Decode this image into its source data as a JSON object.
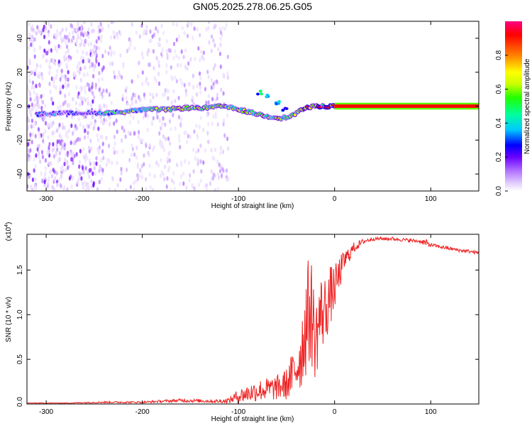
{
  "figure_title": "GN05.2025.278.06.25.G05",
  "chart_data": [
    {
      "type": "heatmap",
      "name": "spectrogram",
      "title": "GN05.2025.278.06.25.G05",
      "xlabel": "Height of straight line (km)",
      "ylabel": "Frequency (Hz)",
      "xlim": [
        -320,
        150
      ],
      "ylim": [
        -50,
        50
      ],
      "x_ticks": [
        -300,
        -200,
        -100,
        0,
        100
      ],
      "y_ticks": [
        -40,
        -20,
        0,
        20,
        40
      ],
      "colorbar": {
        "label": "Normalized spectral amplitude",
        "range": [
          0.0,
          1.0
        ],
        "ticks": [
          0.0,
          0.2,
          0.4,
          0.6,
          0.8
        ],
        "tick_labels": [
          "0.0",
          "0.2",
          "0.4",
          "0.6",
          "0.8"
        ],
        "colormap": [
          "#ffffff",
          "#e0c8ff",
          "#b070ff",
          "#6a00ff",
          "#0000ff",
          "#00c8ff",
          "#00ff80",
          "#40ff00",
          "#c8ff00",
          "#ffff00",
          "#ff8000",
          "#ff0000",
          "#ff0080"
        ]
      },
      "signal_track": [
        {
          "x": -310,
          "f": -5,
          "amp": 0.35
        },
        {
          "x": -290,
          "f": -4,
          "amp": 0.4
        },
        {
          "x": -270,
          "f": -4,
          "amp": 0.3
        },
        {
          "x": -250,
          "f": -4,
          "amp": 0.35
        },
        {
          "x": -235,
          "f": -4,
          "amp": 0.55
        },
        {
          "x": -215,
          "f": -3,
          "amp": 0.6
        },
        {
          "x": -195,
          "f": -2,
          "amp": 0.65
        },
        {
          "x": -175,
          "f": -2,
          "amp": 0.65
        },
        {
          "x": -155,
          "f": -1,
          "amp": 0.65
        },
        {
          "x": -135,
          "f": -1,
          "amp": 0.7
        },
        {
          "x": -115,
          "f": 0,
          "amp": 0.7
        },
        {
          "x": -100,
          "f": -2,
          "amp": 0.75
        },
        {
          "x": -85,
          "f": -4,
          "amp": 0.7
        },
        {
          "x": -70,
          "f": -6,
          "amp": 0.7
        },
        {
          "x": -55,
          "f": -7,
          "amp": 0.7
        },
        {
          "x": -45,
          "f": -6,
          "amp": 0.65
        },
        {
          "x": -35,
          "f": -2,
          "amp": 0.8
        },
        {
          "x": -20,
          "f": 0,
          "amp": 0.9
        },
        {
          "x": 0,
          "f": 0,
          "amp": 0.95
        },
        {
          "x": 150,
          "f": 0,
          "amp": 1.0
        }
      ],
      "side_branch": [
        {
          "x": -78,
          "f": 8,
          "amp": 0.45
        },
        {
          "x": -70,
          "f": 6,
          "amp": 0.45
        },
        {
          "x": -60,
          "f": 2,
          "amp": 0.4
        },
        {
          "x": -52,
          "f": -2,
          "amp": 0.4
        }
      ],
      "noise_region_x": [
        -320,
        -110
      ]
    },
    {
      "type": "line",
      "name": "snr",
      "xlabel": "Height of straight line (km)",
      "ylabel": "SNR (10 * v/v)",
      "y_multiplier": "(x10^4)",
      "xlim": [
        -320,
        150
      ],
      "ylim": [
        0,
        1.9
      ],
      "x_ticks": [
        -300,
        -200,
        -100,
        0,
        100
      ],
      "y_ticks": [
        0.0,
        0.5,
        1.0,
        1.5
      ],
      "y_tick_labels": [
        "0.0",
        "0.5",
        "1.0",
        "1.5"
      ],
      "series": [
        {
          "name": "SNR",
          "color": "#ee2222",
          "x": [
            -320,
            -280,
            -240,
            -200,
            -160,
            -120,
            -110,
            -100,
            -80,
            -60,
            -50,
            -40,
            -35,
            -30,
            -25,
            -20,
            -15,
            -10,
            -5,
            0,
            5,
            10,
            20,
            30,
            40,
            50,
            60,
            70,
            80,
            90,
            95,
            100,
            110,
            120,
            130,
            140,
            150
          ],
          "values": [
            0.01,
            0.01,
            0.02,
            0.02,
            0.04,
            0.03,
            0.04,
            0.09,
            0.15,
            0.18,
            0.22,
            0.4,
            0.55,
            0.9,
            1.1,
            0.7,
            1.0,
            1.05,
            1.2,
            1.3,
            1.45,
            1.6,
            1.75,
            1.82,
            1.85,
            1.85,
            1.85,
            1.84,
            1.83,
            1.82,
            1.8,
            1.78,
            1.76,
            1.74,
            1.72,
            1.71,
            1.69
          ],
          "noise": [
            0.005,
            0.005,
            0.01,
            0.01,
            0.02,
            0.02,
            0.03,
            0.08,
            0.12,
            0.14,
            0.18,
            0.3,
            0.4,
            0.6,
            0.65,
            0.45,
            0.45,
            0.4,
            0.35,
            0.25,
            0.2,
            0.12,
            0.06,
            0.03,
            0.02,
            0.02,
            0.02,
            0.02,
            0.02,
            0.02,
            0.05,
            0.02,
            0.02,
            0.02,
            0.02,
            0.02,
            0.02
          ]
        }
      ]
    }
  ]
}
